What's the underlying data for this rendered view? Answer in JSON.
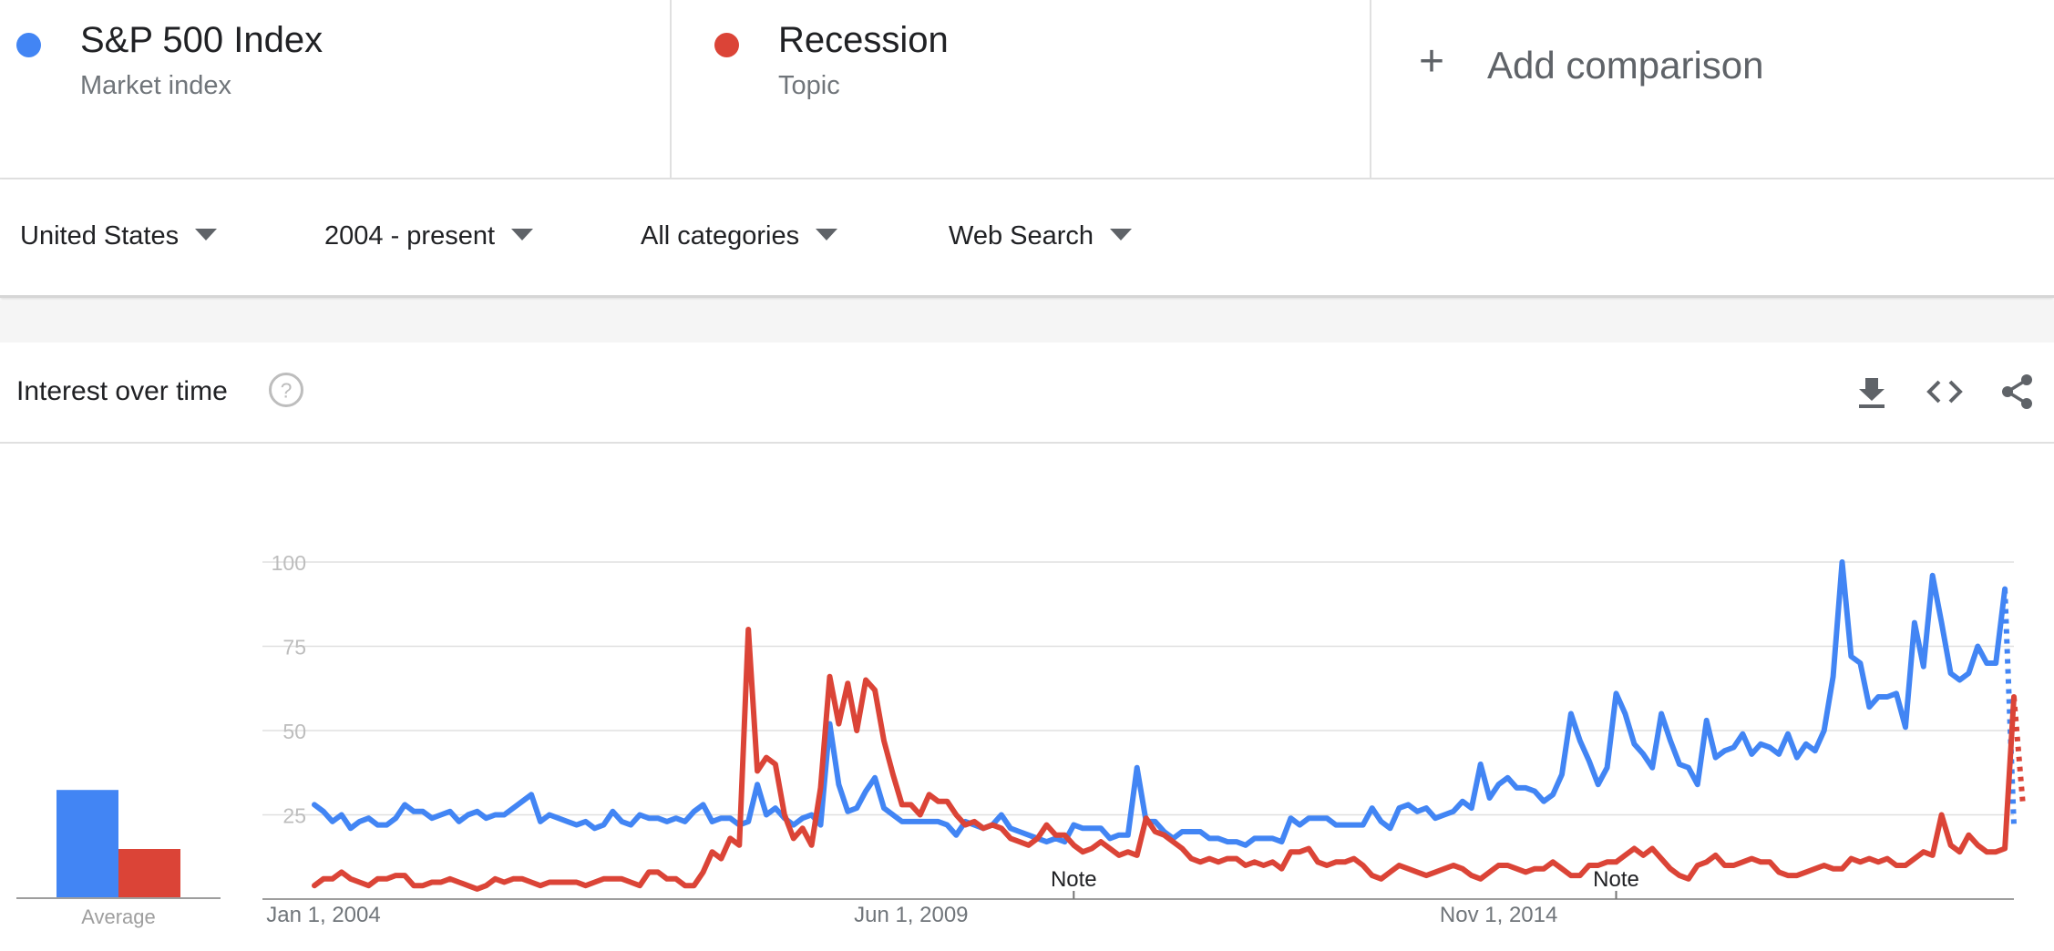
{
  "terms": [
    {
      "name": "S&P 500 Index",
      "type": "Market index",
      "color": "#4285f4"
    },
    {
      "name": "Recession",
      "type": "Topic",
      "color": "#db4437"
    }
  ],
  "add_comparison": {
    "label": "Add comparison",
    "icon": "plus-icon"
  },
  "filters": {
    "region": "United States",
    "time_range": "2004 - present",
    "category": "All categories",
    "property": "Web Search"
  },
  "card": {
    "title": "Interest over time",
    "icons": [
      "help-icon",
      "download-icon",
      "embed-code-icon",
      "share-icon"
    ]
  },
  "chart_data": {
    "type": "line",
    "title": "Interest over time",
    "ylim": [
      0,
      100
    ],
    "yticks": [
      25,
      50,
      75,
      100
    ],
    "x_tick_labels": [
      {
        "label": "Jan 1, 2004",
        "index": 0
      },
      {
        "label": "Jun 1, 2009",
        "index": 65
      },
      {
        "label": "Nov 1, 2014",
        "index": 130
      }
    ],
    "notes": [
      {
        "label": "Note",
        "index": 84
      },
      {
        "label": "Note",
        "index": 144
      }
    ],
    "grid": true,
    "x_start": "2004-01",
    "x_step": "month",
    "partial_last_point": true,
    "average": {
      "label": "Average",
      "values": [
        33,
        15
      ]
    },
    "series": [
      {
        "name": "S&P 500 Index",
        "color": "#4285f4",
        "values": [
          28,
          26,
          23,
          25,
          21,
          23,
          24,
          22,
          22,
          24,
          28,
          26,
          26,
          24,
          25,
          26,
          23,
          25,
          26,
          24,
          25,
          25,
          27,
          29,
          31,
          23,
          25,
          24,
          23,
          22,
          23,
          21,
          22,
          26,
          23,
          22,
          25,
          24,
          24,
          23,
          24,
          23,
          26,
          28,
          23,
          24,
          24,
          22,
          23,
          34,
          25,
          27,
          24,
          22,
          24,
          25,
          22,
          52,
          34,
          26,
          27,
          32,
          36,
          27,
          25,
          23,
          23,
          23,
          23,
          23,
          22,
          19,
          23,
          22,
          21,
          22,
          25,
          21,
          20,
          19,
          18,
          17,
          18,
          17,
          22,
          21,
          21,
          21,
          18,
          19,
          19,
          39,
          23,
          23,
          20,
          18,
          20,
          20,
          20,
          18,
          18,
          17,
          17,
          16,
          18,
          18,
          18,
          17,
          24,
          22,
          24,
          24,
          24,
          22,
          22,
          22,
          22,
          27,
          23,
          21,
          27,
          28,
          26,
          27,
          24,
          25,
          26,
          29,
          27,
          40,
          30,
          34,
          36,
          33,
          33,
          32,
          29,
          31,
          37,
          55,
          47,
          41,
          34,
          39,
          61,
          55,
          46,
          43,
          39,
          55,
          47,
          40,
          39,
          34,
          53,
          42,
          44,
          45,
          49,
          43,
          46,
          45,
          43,
          49,
          42,
          46,
          44,
          50,
          66,
          100,
          72,
          70,
          57,
          60,
          60,
          61,
          51,
          82,
          69,
          96,
          82,
          67,
          65,
          67,
          75,
          70,
          70,
          92,
          22
        ]
      },
      {
        "name": "Recession",
        "color": "#db4437",
        "values": [
          4,
          6,
          6,
          8,
          6,
          5,
          4,
          6,
          6,
          7,
          7,
          4,
          4,
          5,
          5,
          6,
          5,
          4,
          3,
          4,
          6,
          5,
          6,
          6,
          5,
          4,
          5,
          5,
          5,
          5,
          4,
          5,
          6,
          6,
          6,
          5,
          4,
          8,
          8,
          6,
          6,
          4,
          4,
          8,
          14,
          12,
          18,
          16,
          80,
          38,
          42,
          40,
          25,
          18,
          21,
          16,
          33,
          66,
          52,
          64,
          50,
          65,
          62,
          47,
          37,
          28,
          28,
          25,
          31,
          29,
          29,
          25,
          22,
          23,
          21,
          22,
          21,
          18,
          17,
          16,
          18,
          22,
          19,
          19,
          16,
          14,
          15,
          17,
          15,
          13,
          14,
          13,
          24,
          20,
          19,
          17,
          15,
          12,
          11,
          12,
          11,
          12,
          12,
          10,
          11,
          10,
          11,
          9,
          14,
          14,
          15,
          11,
          10,
          11,
          11,
          12,
          10,
          7,
          6,
          8,
          10,
          9,
          8,
          7,
          8,
          9,
          10,
          9,
          7,
          6,
          8,
          10,
          10,
          9,
          8,
          9,
          9,
          11,
          9,
          7,
          7,
          10,
          10,
          11,
          11,
          13,
          15,
          13,
          15,
          12,
          9,
          7,
          6,
          10,
          11,
          13,
          10,
          10,
          11,
          12,
          11,
          11,
          8,
          7,
          7,
          8,
          9,
          10,
          9,
          9,
          12,
          11,
          12,
          11,
          12,
          10,
          10,
          12,
          14,
          13,
          25,
          16,
          14,
          19,
          16,
          14,
          14,
          15,
          60,
          28
        ]
      }
    ]
  }
}
